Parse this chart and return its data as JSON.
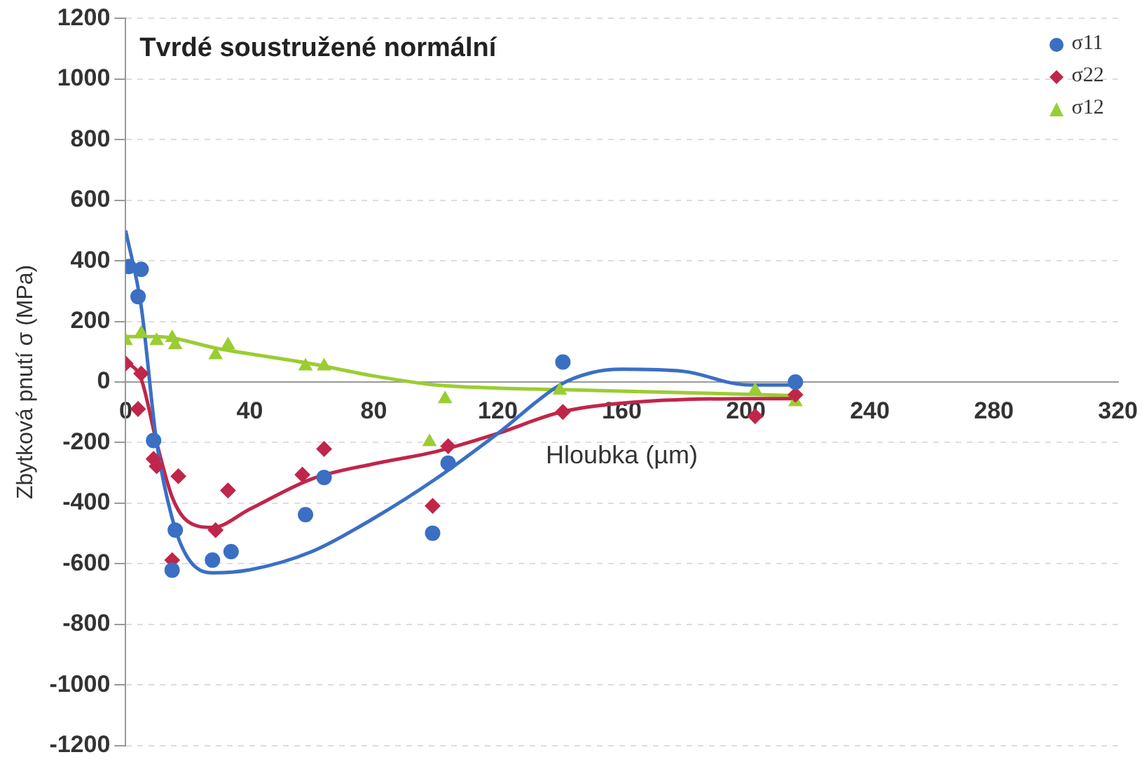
{
  "chart_data": {
    "type": "scatter",
    "title": "Tvrdé soustružené normální",
    "xlabel": "Hloubka (µm)",
    "ylabel": "Zbytková pnutí σ (MPa)",
    "xlim": [
      0,
      320
    ],
    "xticks": [
      0,
      40,
      80,
      120,
      160,
      200,
      240,
      280,
      320
    ],
    "ylim": [
      -1200,
      1200
    ],
    "yticks": [
      -1200,
      -1000,
      -800,
      -600,
      -400,
      -200,
      0,
      200,
      400,
      600,
      800,
      1000,
      1200
    ],
    "grid": "y",
    "legend": "top right",
    "series": [
      {
        "name": "σ11",
        "marker": "circle",
        "color": "#3a6fc4",
        "x": [
          1,
          5,
          4,
          9,
          16,
          15,
          28,
          34,
          58,
          64,
          99,
          104,
          141,
          216
        ],
        "values": [
          381,
          372,
          282,
          -193,
          -489,
          -621,
          -588,
          -560,
          -438,
          -315,
          -499,
          -268,
          66,
          0
        ]
      },
      {
        "name": "σ22",
        "marker": "diamond",
        "color": "#c0264a",
        "x": [
          0,
          5,
          4,
          9,
          10,
          17,
          15,
          29,
          33,
          57,
          64,
          99,
          104,
          141,
          203,
          216
        ],
        "values": [
          61,
          28,
          -89,
          -254,
          -278,
          -311,
          -588,
          -489,
          -358,
          -306,
          -221,
          -409,
          -212,
          -99,
          -113,
          -42
        ]
      },
      {
        "name": "σ12",
        "marker": "triangle",
        "color": "#9acd32",
        "x": [
          0,
          5,
          10,
          15,
          16,
          29,
          33,
          58,
          64,
          103,
          98,
          140,
          203,
          216
        ],
        "values": [
          136,
          160,
          136,
          146,
          122,
          89,
          122,
          52,
          52,
          -56,
          -198,
          -28,
          -28,
          -66
        ]
      },
      {
        "type": "line",
        "marker": "none",
        "line_style": "solid",
        "color": "#3a6fc4",
        "x": [
          0,
          5,
          10,
          15,
          20,
          28,
          40,
          60,
          80,
          100,
          120,
          140,
          150,
          160,
          180,
          200,
          216
        ],
        "values": [
          500,
          250,
          -200,
          -450,
          -580,
          -630,
          -620,
          -560,
          -450,
          -320,
          -170,
          -10,
          30,
          42,
          35,
          -9,
          -10
        ]
      },
      {
        "type": "line",
        "marker": "none",
        "line_style": "solid",
        "color": "#c0264a",
        "x": [
          0,
          5,
          10,
          15,
          20,
          28,
          40,
          60,
          80,
          100,
          120,
          140,
          160,
          200,
          216
        ],
        "values": [
          70,
          10,
          -200,
          -380,
          -460,
          -480,
          -420,
          -320,
          -270,
          -230,
          -170,
          -100,
          -70,
          -55,
          -55
        ]
      },
      {
        "type": "line",
        "marker": "none",
        "line_style": "solid",
        "color": "#9acd32",
        "x": [
          0,
          10,
          30,
          60,
          80,
          100,
          120,
          140,
          180,
          216
        ],
        "values": [
          150,
          150,
          110,
          60,
          20,
          -10,
          -20,
          -25,
          -35,
          -45
        ]
      }
    ]
  }
}
